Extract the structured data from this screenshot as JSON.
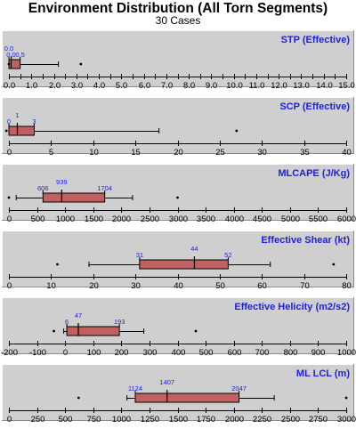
{
  "header": {
    "title": "Environment Distribution (All Torn Segments)",
    "subtitle": "30 Cases"
  },
  "colors": {
    "panel_bg": "#cfcfcf",
    "box_fill": "#c06060",
    "label_text": "#1e1ee6"
  },
  "chart_data": [
    {
      "type": "box",
      "title": "STP (Effective)",
      "xlim": [
        0,
        15
      ],
      "ticks": [
        0.0,
        0.5,
        1.0,
        1.5,
        2.0,
        2.5,
        3.0,
        3.5,
        4.0,
        4.5,
        5.0,
        5.5,
        6.0,
        6.5,
        7.0,
        7.5,
        8.0,
        8.5,
        9.0,
        9.5,
        10.0,
        10.5,
        11.0,
        11.5,
        12.0,
        12.5,
        13.0,
        13.5,
        14.0,
        14.5,
        15.0
      ],
      "tick_labels": [
        "0.0",
        "",
        "1.0",
        "",
        "2.0",
        "",
        "3.0",
        "",
        "4.0",
        "",
        "5.0",
        "",
        "6.0",
        "",
        "7.0",
        "",
        "8.0",
        "",
        "9.0",
        "",
        "10.0",
        "",
        "11.0",
        "",
        "12.0",
        "",
        "13.0",
        "",
        "14.0",
        "",
        "15.0"
      ],
      "whisker_low": 0.0,
      "q1": 0.0,
      "median": 0.1,
      "q3": 0.5,
      "whisker_high": 2.2,
      "outliers": [
        0.0,
        3.2
      ],
      "value_labels": [
        {
          "text": "0.0",
          "row": 1
        },
        {
          "text": "0.0",
          "row": 0
        },
        {
          "text": "0.5",
          "row": 0
        }
      ]
    },
    {
      "type": "box",
      "title": "SCP (Effective)",
      "xlim": [
        0,
        40
      ],
      "ticks": [
        0,
        5,
        10,
        15,
        20,
        25,
        30,
        35,
        40
      ],
      "tick_labels": [
        "0",
        "5",
        "10",
        "15",
        "20",
        "25",
        "30",
        "35",
        "40"
      ],
      "whisker_low": 0,
      "q1": 0,
      "median": 1,
      "q3": 3,
      "whisker_high": 17.8,
      "outliers": [
        -0.3,
        27
      ],
      "value_labels": [
        {
          "text": "0",
          "row": 0
        },
        {
          "text": "1",
          "row": 1
        },
        {
          "text": "3",
          "row": 0
        }
      ]
    },
    {
      "type": "box",
      "title": "MLCAPE (J/Kg)",
      "xlim": [
        0,
        6000
      ],
      "ticks": [
        0,
        500,
        1000,
        1500,
        2000,
        2500,
        3000,
        3500,
        4000,
        4500,
        5000,
        5500,
        6000
      ],
      "tick_labels": [
        "0",
        "500",
        "1000",
        "1500",
        "2000",
        "2500",
        "3000",
        "3500",
        "4000",
        "4500",
        "5000",
        "5500",
        "6000"
      ],
      "whisker_low": 130,
      "q1": 606,
      "median": 939,
      "q3": 1704,
      "whisker_high": 2200,
      "outliers": [
        0,
        3000
      ],
      "value_labels": [
        {
          "text": "606",
          "row": 0
        },
        {
          "text": "939",
          "row": 1
        },
        {
          "text": "1704",
          "row": 0
        }
      ]
    },
    {
      "type": "box",
      "title": "Effective Shear (kt)",
      "xlim": [
        0,
        80
      ],
      "ticks": [
        0,
        10,
        20,
        30,
        40,
        50,
        60,
        70,
        80
      ],
      "tick_labels": [
        "0",
        "10",
        "20",
        "30",
        "40",
        "50",
        "60",
        "70",
        "80"
      ],
      "whisker_low": 19,
      "q1": 31,
      "median": 44,
      "q3": 52,
      "whisker_high": 62,
      "outliers": [
        11.5,
        77
      ],
      "value_labels": [
        {
          "text": "31",
          "row": 0
        },
        {
          "text": "44",
          "row": 1
        },
        {
          "text": "52",
          "row": 0
        }
      ]
    },
    {
      "type": "box",
      "title": "Effective Helicity (m2/s2)",
      "xlim": [
        -200,
        1000
      ],
      "ticks": [
        -200,
        -100,
        0,
        100,
        200,
        300,
        400,
        500,
        600,
        700,
        800,
        900,
        1000
      ],
      "tick_labels": [
        "-200",
        "-100",
        "0",
        "100",
        "200",
        "300",
        "400",
        "500",
        "600",
        "700",
        "800",
        "900",
        "1000"
      ],
      "whisker_low": -5,
      "q1": 6,
      "median": 47,
      "q3": 193,
      "whisker_high": 280,
      "outliers": [
        -40,
        465
      ],
      "value_labels": [
        {
          "text": "6",
          "row": 0
        },
        {
          "text": "47",
          "row": 1
        },
        {
          "text": "193",
          "row": 0
        }
      ]
    },
    {
      "type": "box",
      "title": "ML LCL (m)",
      "xlim": [
        0,
        3000
      ],
      "ticks": [
        0,
        250,
        500,
        750,
        1000,
        1250,
        1500,
        1750,
        2000,
        2250,
        2500,
        2750,
        3000
      ],
      "tick_labels": [
        "0",
        "250",
        "500",
        "750",
        "1000",
        "1250",
        "1500",
        "1750",
        "2000",
        "2250",
        "2500",
        "2750",
        "3000"
      ],
      "whisker_low": 1050,
      "q1": 1124,
      "median": 1407,
      "q3": 2047,
      "whisker_high": 2360,
      "outliers": [
        620,
        3000
      ],
      "value_labels": [
        {
          "text": "1124",
          "row": 0
        },
        {
          "text": "1407",
          "row": 1
        },
        {
          "text": "2047",
          "row": 0
        }
      ]
    }
  ]
}
